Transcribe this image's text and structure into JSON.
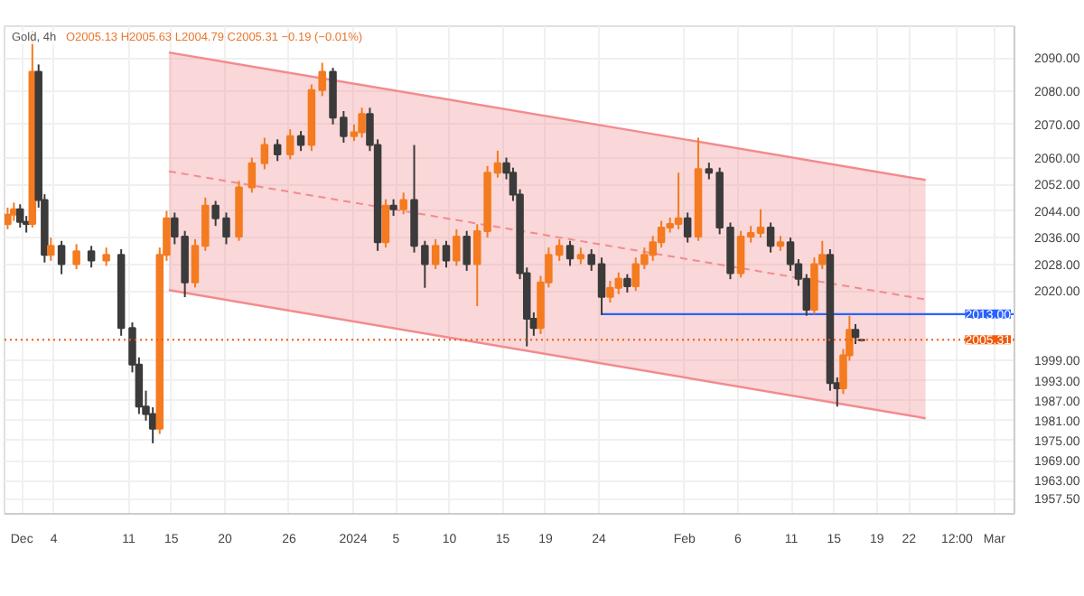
{
  "chart_data": {
    "type": "candlestick",
    "title": "Gold, 4h",
    "subtitle": "O2005.13 H2005.63 L2004.79 C2005.31 −0.19 (−0.01%)",
    "x": [
      "2023-11-29T16:00",
      "2023-11-30T06:00",
      "2023-11-30T20:00",
      "2023-12-01T10:00",
      "2023-12-01T23:30",
      "2023-12-02T13:30",
      "2023-12-03T03:00",
      "2023-12-03T17:00",
      "2023-12-04T17:00",
      "2023-12-06T02:30",
      "2023-12-07T12:00",
      "2023-12-08T21:30",
      "2023-12-10T07:00",
      "2023-12-11T08:00",
      "2023-12-11T23:00",
      "2023-12-12T14:30",
      "2023-12-13T06:00",
      "2023-12-13T21:30",
      "2023-12-14T13:00",
      "2023-12-15T07:00",
      "2023-12-16T06:00",
      "2023-12-17T05:00",
      "2023-12-18T04:00",
      "2023-12-19T03:00",
      "2023-12-20T03:00",
      "2023-12-21T07:30",
      "2023-12-22T12:30",
      "2023-12-23T17:00",
      "2023-12-24T22:00",
      "2023-12-26T02:30",
      "2023-12-27T02:30",
      "2023-12-28T02:30",
      "2023-12-29T02:30",
      "2023-12-30T02:30",
      "2023-12-31T02:30",
      "2024-01-01T02:00",
      "2024-01-01T19:30",
      "2024-01-02T13:30",
      "2024-01-03T07:00",
      "2024-01-04T01:00",
      "2024-01-04T18:30",
      "2024-01-05T17:00",
      "2024-01-06T17:00",
      "2024-01-07T17:00",
      "2024-01-08T17:00",
      "2024-01-09T17:00",
      "2024-01-10T16:00",
      "2024-01-11T15:00",
      "2024-01-12T14:30",
      "2024-01-13T13:30",
      "2024-01-14T12:30",
      "2024-01-15T08:00",
      "2024-01-15T23:00",
      "2024-01-16T14:30",
      "2024-01-17T06:00",
      "2024-01-17T21:30",
      "2024-01-18T13:00",
      "2024-01-19T07:00",
      "2024-01-20T07:00",
      "2024-01-21T07:00",
      "2024-01-22T07:00",
      "2024-01-23T07:00",
      "2024-01-24T06:00",
      "2024-01-25T01:00",
      "2024-01-25T20:00",
      "2024-01-26T15:30",
      "2024-01-27T10:30",
      "2024-01-28T06:00",
      "2024-01-29T01:00",
      "2024-01-29T20:00",
      "2024-01-30T15:30",
      "2024-01-31T10:30",
      "2024-02-01T07:00",
      "2024-02-02T07:00",
      "2024-02-03T07:00",
      "2024-02-04T07:00",
      "2024-02-05T07:00",
      "2024-02-06T06:30",
      "2024-02-07T05:00",
      "2024-02-08T03:00",
      "2024-02-09T01:30",
      "2024-02-09T23:30",
      "2024-02-10T22:00",
      "2024-02-11T16:00",
      "2024-02-12T10:00",
      "2024-02-13T03:30",
      "2024-02-13T21:30",
      "2024-02-14T15:00",
      "2024-02-15T07:00",
      "2024-02-15T20:30",
      "2024-02-16T10:30",
      "2024-02-17T00:00",
      "2024-02-17T13:30"
    ],
    "ohlc": [
      [
        2040.0,
        2045.0,
        2038.5,
        2042.9
      ],
      [
        2042.9,
        2046.5,
        2041.0,
        2044.5
      ],
      [
        2044.5,
        2046.0,
        2039.0,
        2040.7
      ],
      [
        2040.7,
        2042.5,
        2037.5,
        2040.1
      ],
      [
        2040.1,
        2098.0,
        2039.0,
        2085.8
      ],
      [
        2085.8,
        2088.0,
        2045.0,
        2047.3
      ],
      [
        2047.3,
        2049.0,
        2028.5,
        2030.8
      ],
      [
        2030.8,
        2036.0,
        2029.0,
        2033.5
      ],
      [
        2033.5,
        2035.0,
        2025.0,
        2028.0
      ],
      [
        2028.0,
        2034.0,
        2026.5,
        2031.9
      ],
      [
        2031.9,
        2033.5,
        2027.0,
        2029.1
      ],
      [
        2029.1,
        2033.0,
        2027.5,
        2030.8
      ],
      [
        2030.8,
        2032.5,
        2006.5,
        2008.8
      ],
      [
        2008.8,
        2010.5,
        1995.5,
        1997.8
      ],
      [
        1997.8,
        2000.0,
        1983.0,
        1985.2
      ],
      [
        1985.2,
        1990.0,
        1981.0,
        1983.0
      ],
      [
        1983.0,
        1985.0,
        1974.2,
        1978.6
      ],
      [
        1978.6,
        2033.0,
        1977.0,
        2030.8
      ],
      [
        2030.8,
        2044.0,
        2029.0,
        2041.8
      ],
      [
        2041.8,
        2043.5,
        2034.0,
        2036.3
      ],
      [
        2036.3,
        2038.0,
        2018.1,
        2022.5
      ],
      [
        2022.5,
        2035.5,
        2021.0,
        2033.5
      ],
      [
        2033.5,
        2048.0,
        2032.0,
        2045.6
      ],
      [
        2045.6,
        2047.0,
        2039.5,
        2041.8
      ],
      [
        2041.8,
        2043.5,
        2034.0,
        2036.3
      ],
      [
        2036.3,
        2053.0,
        2035.0,
        2051.1
      ],
      [
        2051.1,
        2060.0,
        2049.5,
        2058.3
      ],
      [
        2058.3,
        2066.0,
        2056.5,
        2063.8
      ],
      [
        2063.8,
        2065.5,
        2059.0,
        2061.0
      ],
      [
        2061.0,
        2068.5,
        2059.5,
        2066.5
      ],
      [
        2066.5,
        2068.0,
        2062.0,
        2063.8
      ],
      [
        2063.8,
        2082.0,
        2062.0,
        2080.3
      ],
      [
        2080.3,
        2088.5,
        2078.5,
        2085.8
      ],
      [
        2085.8,
        2087.0,
        2070.0,
        2072.0
      ],
      [
        2072.0,
        2074.0,
        2064.5,
        2066.5
      ],
      [
        2066.5,
        2070.0,
        2065.0,
        2067.6
      ],
      [
        2067.6,
        2075.0,
        2066.0,
        2073.1
      ],
      [
        2073.1,
        2075.0,
        2062.0,
        2063.8
      ],
      [
        2063.8,
        2065.5,
        2032.0,
        2034.6
      ],
      [
        2034.6,
        2047.5,
        2033.0,
        2045.6
      ],
      [
        2045.6,
        2047.5,
        2042.5,
        2044.5
      ],
      [
        2044.5,
        2049.5,
        2043.0,
        2047.3
      ],
      [
        2047.3,
        2063.8,
        2031.5,
        2033.5
      ],
      [
        2033.5,
        2035.0,
        2020.9,
        2028.0
      ],
      [
        2028.0,
        2035.5,
        2026.5,
        2033.5
      ],
      [
        2033.5,
        2035.0,
        2027.0,
        2029.1
      ],
      [
        2029.1,
        2038.5,
        2027.5,
        2036.3
      ],
      [
        2036.3,
        2038.0,
        2026.0,
        2028.0
      ],
      [
        2028.0,
        2040.0,
        2015.4,
        2037.9
      ],
      [
        2037.9,
        2057.5,
        2036.0,
        2055.5
      ],
      [
        2055.5,
        2062.1,
        2054.0,
        2058.3
      ],
      [
        2058.3,
        2060.0,
        2053.5,
        2055.5
      ],
      [
        2055.5,
        2057.0,
        2047.0,
        2048.9
      ],
      [
        2048.9,
        2050.5,
        2023.5,
        2025.3
      ],
      [
        2025.3,
        2027.0,
        2003.3,
        2011.6
      ],
      [
        2011.6,
        2013.5,
        2006.5,
        2008.8
      ],
      [
        2008.8,
        2024.5,
        2007.0,
        2022.5
      ],
      [
        2022.5,
        2033.0,
        2021.0,
        2030.8
      ],
      [
        2030.8,
        2035.5,
        2029.0,
        2033.5
      ],
      [
        2033.5,
        2035.0,
        2027.5,
        2029.7
      ],
      [
        2029.7,
        2033.0,
        2028.0,
        2030.8
      ],
      [
        2030.8,
        2032.5,
        2026.0,
        2028.0
      ],
      [
        2028.0,
        2030.0,
        2012.7,
        2018.2
      ],
      [
        2018.2,
        2023.0,
        2016.5,
        2020.9
      ],
      [
        2020.9,
        2025.5,
        2019.0,
        2023.6
      ],
      [
        2023.6,
        2025.0,
        2019.5,
        2021.4
      ],
      [
        2021.4,
        2030.0,
        2020.0,
        2028.0
      ],
      [
        2028.0,
        2033.0,
        2026.5,
        2030.8
      ],
      [
        2030.8,
        2036.5,
        2029.0,
        2034.6
      ],
      [
        2034.6,
        2041.0,
        2033.0,
        2039.0
      ],
      [
        2039.0,
        2042.0,
        2037.5,
        2040.1
      ],
      [
        2040.1,
        2055.5,
        2038.5,
        2041.8
      ],
      [
        2041.8,
        2043.5,
        2034.5,
        2036.3
      ],
      [
        2036.3,
        2066.0,
        2035.0,
        2056.6
      ],
      [
        2056.6,
        2058.5,
        2053.5,
        2055.5
      ],
      [
        2055.5,
        2057.0,
        2037.0,
        2039.0
      ],
      [
        2039.0,
        2040.5,
        2023.5,
        2025.3
      ],
      [
        2025.3,
        2038.0,
        2024.0,
        2036.3
      ],
      [
        2036.3,
        2039.5,
        2034.5,
        2037.4
      ],
      [
        2037.4,
        2044.5,
        2036.0,
        2039.0
      ],
      [
        2039.0,
        2040.5,
        2031.5,
        2033.5
      ],
      [
        2033.5,
        2036.5,
        2032.0,
        2034.6
      ],
      [
        2034.6,
        2036.0,
        2026.0,
        2028.0
      ],
      [
        2028.0,
        2029.5,
        2021.5,
        2023.6
      ],
      [
        2023.6,
        2025.0,
        2012.5,
        2014.3
      ],
      [
        2014.3,
        2030.0,
        2013.0,
        2028.0
      ],
      [
        2028.0,
        2035.0,
        2026.5,
        2030.8
      ],
      [
        2030.8,
        2032.5,
        1990.0,
        1992.3
      ],
      [
        1992.3,
        1994.0,
        1985.2,
        1990.7
      ],
      [
        1990.7,
        2002.5,
        1989.0,
        2000.6
      ],
      [
        2000.6,
        2012.5,
        1999.0,
        2008.3
      ],
      [
        2008.3,
        2010.0,
        2004.0,
        2006.1
      ],
      [
        2005.13,
        2005.63,
        2004.79,
        2005.31
      ]
    ],
    "colors": [
      "#f47b20",
      "#f47b20",
      "#3b3b3b",
      "#3b3b3b",
      "#f47b20",
      "#3b3b3b",
      "#3b3b3b",
      "#f47b20",
      "#3b3b3b",
      "#f47b20",
      "#3b3b3b",
      "#f47b20",
      "#3b3b3b",
      "#3b3b3b",
      "#3b3b3b",
      "#3b3b3b",
      "#3b3b3b",
      "#f47b20",
      "#f47b20",
      "#3b3b3b",
      "#3b3b3b",
      "#f47b20",
      "#f47b20",
      "#3b3b3b",
      "#3b3b3b",
      "#f47b20",
      "#f47b20",
      "#f47b20",
      "#3b3b3b",
      "#f47b20",
      "#3b3b3b",
      "#f47b20",
      "#f47b20",
      "#3b3b3b",
      "#3b3b3b",
      "#f47b20",
      "#f47b20",
      "#3b3b3b",
      "#3b3b3b",
      "#f47b20",
      "#3b3b3b",
      "#f47b20",
      "#3b3b3b",
      "#3b3b3b",
      "#f47b20",
      "#3b3b3b",
      "#f47b20",
      "#3b3b3b",
      "#f47b20",
      "#f47b20",
      "#f47b20",
      "#3b3b3b",
      "#3b3b3b",
      "#3b3b3b",
      "#3b3b3b",
      "#3b3b3b",
      "#f47b20",
      "#f47b20",
      "#f47b20",
      "#3b3b3b",
      "#f47b20",
      "#3b3b3b",
      "#3b3b3b",
      "#f47b20",
      "#f47b20",
      "#3b3b3b",
      "#f47b20",
      "#f47b20",
      "#f47b20",
      "#f47b20",
      "#f47b20",
      "#f47b20",
      "#3b3b3b",
      "#f47b20",
      "#3b3b3b",
      "#3b3b3b",
      "#3b3b3b",
      "#f47b20",
      "#f47b20",
      "#f47b20",
      "#3b3b3b",
      "#f47b20",
      "#3b3b3b",
      "#3b3b3b",
      "#3b3b3b",
      "#f47b20",
      "#f47b20",
      "#3b3b3b",
      "#3b3b3b",
      "#f47b20",
      "#f47b20",
      "#3b3b3b",
      "#3b3b3b"
    ],
    "series": [
      {
        "type": "line",
        "color": "#f28b8e",
        "line_style": "dashed",
        "x": [
          "2023-12-14T18:00",
          "2024-02-23T13:30"
        ],
        "values": [
          2055.9,
          2017.4
        ],
        "lower": [
          2020.2,
          1981.7
        ],
        "upper": [
          2091.6,
          2053.3
        ]
      },
      {
        "type": "line",
        "color": "#f28b8e",
        "line_style": "solid",
        "x": [
          "2023-12-14T18:00",
          "2024-02-23T13:30"
        ],
        "values": [
          2091.6,
          2053.3
        ]
      },
      {
        "type": "line",
        "color": "#f28b8e",
        "line_style": "solid",
        "x": [
          "2023-12-14T18:00",
          "2024-02-23T13:30"
        ],
        "values": [
          2020.2,
          1981.7
        ]
      },
      {
        "type": "line",
        "color": "#2962ff",
        "line_style": "solid",
        "x": [
          "2024-01-24T04:00",
          "2024-03-02T21:00"
        ],
        "values": [
          2013,
          2013
        ]
      }
    ],
    "ref_lines": [
      {
        "axis": "y",
        "value": 2005.31,
        "label": "2005.31",
        "color": "#f05a0a",
        "line_style": "dotted"
      }
    ],
    "annotations": [
      {
        "text": "2013.00",
        "x": "2024-03-02T21:00",
        "y": 2013
      }
    ],
    "xlim": [
      "2023-11-29T09:00",
      "2024-03-02T21:00"
    ],
    "ylim": [
      1953,
      2099.5
    ],
    "xticks": [
      {
        "value": "2023-12-01",
        "label": "Dec"
      },
      {
        "value": "2023-12-04",
        "label": "4"
      },
      {
        "value": "2023-12-11",
        "label": "11"
      },
      {
        "value": "2023-12-15",
        "label": "15"
      },
      {
        "value": "2023-12-20",
        "label": "20"
      },
      {
        "value": "2023-12-26",
        "label": "26"
      },
      {
        "value": "2024-01-01",
        "label": "2024"
      },
      {
        "value": "2024-01-05",
        "label": "5"
      },
      {
        "value": "2024-01-10",
        "label": "10"
      },
      {
        "value": "2024-01-15",
        "label": "15"
      },
      {
        "value": "2024-01-19",
        "label": "19"
      },
      {
        "value": "2024-01-24",
        "label": "24"
      },
      {
        "value": "2024-02-01",
        "label": "Feb"
      },
      {
        "value": "2024-02-06",
        "label": "6"
      },
      {
        "value": "2024-02-11",
        "label": "11"
      },
      {
        "value": "2024-02-15",
        "label": "15"
      },
      {
        "value": "2024-02-19",
        "label": "19"
      },
      {
        "value": "2024-02-22",
        "label": "22"
      },
      {
        "value": "2024-02-26T12:00",
        "label": "12:00"
      },
      {
        "value": "2024-03-01",
        "label": "Mar"
      }
    ],
    "yticks": [
      {
        "value": 2090,
        "label": "2090.00"
      },
      {
        "value": 2080,
        "label": "2080.00"
      },
      {
        "value": 2070,
        "label": "2070.00"
      },
      {
        "value": 2060,
        "label": "2060.00"
      },
      {
        "value": 2052,
        "label": "2052.00"
      },
      {
        "value": 2044,
        "label": "2044.00"
      },
      {
        "value": 2036,
        "label": "2036.00"
      },
      {
        "value": 2028,
        "label": "2028.00"
      },
      {
        "value": 2020,
        "label": "2020.00"
      },
      {
        "value": 1999,
        "label": "1999.00"
      },
      {
        "value": 1993,
        "label": "1993.00"
      },
      {
        "value": 1987,
        "label": "1987.00"
      },
      {
        "value": 1981,
        "label": "1981.00"
      },
      {
        "value": 1975,
        "label": "1975.00"
      },
      {
        "value": 1969,
        "label": "1969.00"
      },
      {
        "value": 1963,
        "label": "1963.00"
      },
      {
        "value": 1957.5,
        "label": "1957.50"
      }
    ],
    "grid": true
  }
}
